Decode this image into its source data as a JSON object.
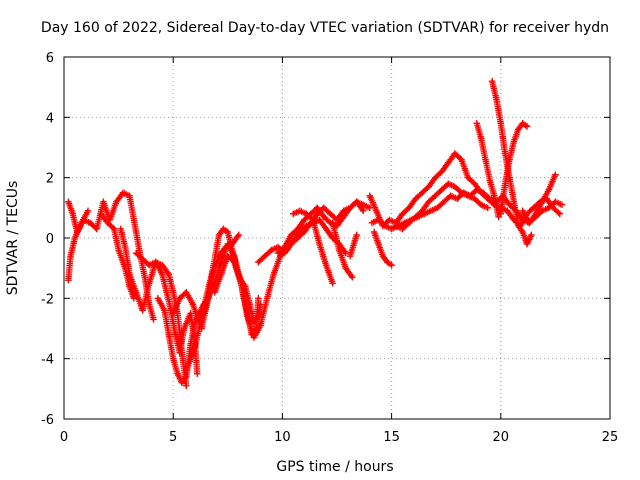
{
  "chart_data": {
    "type": "scatter",
    "title": "Day 160 of 2022, Sidereal Day-to-day VTEC variation (SDTVAR) for receiver hydn",
    "xlabel": "GPS time / hours",
    "ylabel": "SDTVAR / TECUs",
    "xlim": [
      0,
      25
    ],
    "ylim": [
      -6,
      6
    ],
    "xticks": [
      0,
      5,
      10,
      15,
      20,
      25
    ],
    "yticks": [
      -6,
      -4,
      -2,
      0,
      2,
      4,
      6
    ],
    "grid": true,
    "marker": "+",
    "color": "#ff0000",
    "series": [
      {
        "name": "seg1",
        "x": [
          0.2,
          0.4,
          0.6,
          0.9,
          1.2,
          1.5,
          1.8,
          2.1,
          2.4,
          2.7,
          3.0,
          3.3,
          3.5,
          3.7,
          3.9,
          4.1
        ],
        "y": [
          1.2,
          0.8,
          0.2,
          0.6,
          0.5,
          0.3,
          1.2,
          0.6,
          1.2,
          1.5,
          1.4,
          0.2,
          -0.6,
          -1.3,
          -2.2,
          -2.7
        ]
      },
      {
        "name": "seg2",
        "x": [
          0.2,
          0.3,
          0.5,
          0.8,
          1.1
        ],
        "y": [
          -1.4,
          -0.6,
          0.0,
          0.5,
          0.9
        ]
      },
      {
        "name": "seg3",
        "x": [
          1.7,
          2.0,
          2.3,
          2.5,
          2.8,
          3.0,
          3.2
        ],
        "y": [
          0.8,
          0.5,
          0.3,
          -0.4,
          -1.0,
          -1.6,
          -2.0
        ]
      },
      {
        "name": "seg4",
        "x": [
          2.6,
          2.8,
          3.0,
          3.3,
          3.6,
          3.9,
          4.2,
          4.5,
          4.8,
          5.0,
          5.2,
          5.4,
          5.6
        ],
        "y": [
          0.3,
          -0.3,
          -1.2,
          -1.8,
          -2.4,
          -1.5,
          -0.8,
          -0.9,
          -1.2,
          -1.8,
          -2.5,
          -3.8,
          -4.9
        ]
      },
      {
        "name": "seg5",
        "x": [
          3.3,
          3.6,
          3.9,
          4.2,
          4.5,
          4.7,
          4.9,
          5.1,
          5.3,
          5.5,
          5.8,
          6.0,
          6.1
        ],
        "y": [
          -0.5,
          -0.7,
          -0.9,
          -0.8,
          -1.2,
          -1.8,
          -2.4,
          -3.2,
          -3.8,
          -3.0,
          -2.5,
          -3.5,
          -4.5
        ]
      },
      {
        "name": "seg6",
        "x": [
          4.3,
          4.6,
          4.8,
          5.0,
          5.2,
          5.4,
          5.6,
          5.8,
          6.0,
          6.2,
          6.4,
          6.6
        ],
        "y": [
          -2.0,
          -2.4,
          -3.2,
          -4.0,
          -4.5,
          -4.8,
          -4.6,
          -3.5,
          -2.8,
          -2.5,
          -2.2,
          -2.0
        ]
      },
      {
        "name": "seg7",
        "x": [
          5.0,
          5.3,
          5.6,
          5.9,
          6.2,
          6.5,
          6.8,
          7.1,
          7.4,
          7.7,
          8.0
        ],
        "y": [
          -2.5,
          -2.0,
          -1.8,
          -2.2,
          -2.8,
          -2.3,
          -1.2,
          -0.6,
          -0.3,
          -0.2,
          0.1
        ]
      },
      {
        "name": "seg8",
        "x": [
          5.6,
          6.0,
          6.4,
          6.8,
          7.1,
          7.3,
          7.5,
          7.7,
          7.9,
          8.1,
          8.3,
          8.5,
          8.7,
          8.9,
          9.0
        ],
        "y": [
          -4.4,
          -3.6,
          -2.3,
          -1.1,
          0.1,
          0.3,
          0.2,
          -0.4,
          -1.0,
          -1.4,
          -1.6,
          -2.2,
          -2.8,
          -2.6,
          -2.2
        ]
      },
      {
        "name": "seg9",
        "x": [
          6.3,
          6.6,
          6.9,
          7.2,
          7.5,
          7.8,
          8.1,
          8.4,
          8.6,
          8.8,
          8.9
        ],
        "y": [
          -3.0,
          -2.0,
          -1.5,
          -0.8,
          -0.2,
          -0.6,
          -1.5,
          -2.5,
          -3.2,
          -3.0,
          -2.0
        ]
      },
      {
        "name": "seg10",
        "x": [
          6.9,
          7.2,
          7.5,
          7.8,
          8.1,
          8.4,
          8.7,
          9.0,
          9.3,
          9.6,
          9.9,
          10.2,
          10.5,
          10.8,
          11.1,
          11.4,
          11.7,
          12.0,
          12.3,
          12.6,
          12.9
        ],
        "y": [
          -1.8,
          -1.2,
          -0.6,
          -0.8,
          -1.5,
          -2.6,
          -3.3,
          -2.9,
          -2.0,
          -1.2,
          -0.6,
          -0.4,
          -0.1,
          0.2,
          0.4,
          0.5,
          0.6,
          0.3,
          0.0,
          -0.2,
          -0.5
        ]
      },
      {
        "name": "seg11",
        "x": [
          8.9,
          9.2,
          9.5,
          9.8,
          10.1,
          10.4,
          10.7,
          11.0,
          11.3,
          11.6,
          11.9,
          12.2,
          12.5,
          12.8,
          13.1,
          13.4,
          13.7
        ],
        "y": [
          -0.8,
          -0.6,
          -0.4,
          -0.3,
          -0.5,
          -0.2,
          0.0,
          0.2,
          0.5,
          0.8,
          1.0,
          0.8,
          0.6,
          0.9,
          1.0,
          1.2,
          0.9
        ]
      },
      {
        "name": "seg12",
        "x": [
          9.8,
          10.1,
          10.4,
          10.7,
          11.0,
          11.3,
          11.6,
          11.9,
          12.2,
          12.5,
          12.8,
          13.1,
          13.4,
          13.7,
          14.0
        ],
        "y": [
          -0.5,
          -0.3,
          0.1,
          0.3,
          0.6,
          0.8,
          1.0,
          0.7,
          0.5,
          0.4,
          0.7,
          1.0,
          1.2,
          1.1,
          1.0
        ]
      },
      {
        "name": "seg13",
        "x": [
          10.5,
          10.8,
          11.1,
          11.4,
          11.7,
          12.0,
          12.3
        ],
        "y": [
          0.8,
          0.9,
          0.8,
          0.6,
          -0.2,
          -0.9,
          -1.5
        ]
      },
      {
        "name": "seg14",
        "x": [
          12.3,
          12.6,
          12.9,
          13.2
        ],
        "y": [
          0.5,
          -0.4,
          -1.0,
          -1.3
        ]
      },
      {
        "name": "seg15",
        "x": [
          13.1,
          13.4
        ],
        "y": [
          -0.6,
          0.1
        ]
      },
      {
        "name": "seg16",
        "x": [
          14.0,
          14.3,
          14.6,
          14.9,
          15.2,
          15.5,
          15.8,
          16.1,
          16.4,
          16.7,
          17.0,
          17.3,
          17.6,
          17.9,
          18.2,
          18.5,
          18.8,
          19.1,
          19.4,
          19.7,
          20.0,
          20.3,
          20.6,
          20.9,
          21.2,
          21.5,
          21.8,
          22.1,
          22.4,
          22.7
        ],
        "y": [
          1.4,
          0.9,
          0.4,
          0.6,
          0.5,
          0.8,
          1.0,
          1.3,
          1.5,
          1.7,
          2.0,
          2.2,
          2.5,
          2.8,
          2.6,
          2.0,
          1.8,
          1.5,
          1.3,
          1.1,
          1.0,
          0.9,
          0.6,
          0.4,
          0.8,
          1.0,
          1.2,
          1.3,
          1.0,
          0.8
        ]
      },
      {
        "name": "seg17",
        "x": [
          14.1,
          14.4,
          14.7,
          15.0,
          15.3,
          15.6,
          15.9,
          16.2,
          16.5,
          16.8,
          17.1,
          17.4,
          17.7,
          18.0,
          18.3,
          18.6,
          18.9,
          19.2,
          19.5,
          19.8,
          20.1,
          20.4,
          20.7,
          21.0,
          21.3,
          21.6,
          21.9,
          22.2,
          22.5,
          22.8
        ],
        "y": [
          0.5,
          0.6,
          0.4,
          0.3,
          0.4,
          0.5,
          0.6,
          0.7,
          0.8,
          0.9,
          1.0,
          1.2,
          1.4,
          1.3,
          1.5,
          1.4,
          1.6,
          1.5,
          1.3,
          1.2,
          1.4,
          1.1,
          0.9,
          0.6,
          0.5,
          0.7,
          0.9,
          1.0,
          1.2,
          1.1
        ]
      },
      {
        "name": "seg18",
        "x": [
          14.2,
          14.4,
          14.6,
          14.8,
          15.0
        ],
        "y": [
          0.2,
          -0.2,
          -0.6,
          -0.8,
          -0.9
        ]
      },
      {
        "name": "seg19",
        "x": [
          15.2,
          15.5,
          15.8,
          16.1,
          16.4,
          16.7,
          17.0,
          17.3,
          17.6,
          17.9,
          18.2,
          18.5,
          18.8,
          19.1,
          19.4
        ],
        "y": [
          0.4,
          0.3,
          0.5,
          0.7,
          0.9,
          1.2,
          1.4,
          1.6,
          1.8,
          1.7,
          1.5,
          1.4,
          1.3,
          1.1,
          1.0
        ]
      },
      {
        "name": "seg20",
        "x": [
          18.9,
          19.1,
          19.3,
          19.5,
          19.7,
          19.9
        ],
        "y": [
          3.8,
          3.3,
          2.6,
          1.9,
          1.4,
          0.7
        ]
      },
      {
        "name": "seg21",
        "x": [
          19.6,
          19.8,
          20.0,
          20.2,
          20.4,
          20.6,
          20.8,
          21.0,
          21.2,
          21.4
        ],
        "y": [
          5.2,
          4.6,
          3.8,
          2.8,
          2.0,
          1.2,
          0.4,
          0.2,
          -0.2,
          0.1
        ]
      },
      {
        "name": "seg22",
        "x": [
          20.0,
          20.2,
          20.4,
          20.6,
          20.8,
          21.0,
          21.2
        ],
        "y": [
          0.8,
          1.8,
          2.6,
          3.2,
          3.6,
          3.8,
          3.7
        ]
      },
      {
        "name": "seg23",
        "x": [
          21.0,
          21.3,
          21.6,
          21.9,
          22.2,
          22.5
        ],
        "y": [
          0.9,
          0.5,
          0.8,
          1.2,
          1.6,
          2.1
        ]
      }
    ]
  }
}
